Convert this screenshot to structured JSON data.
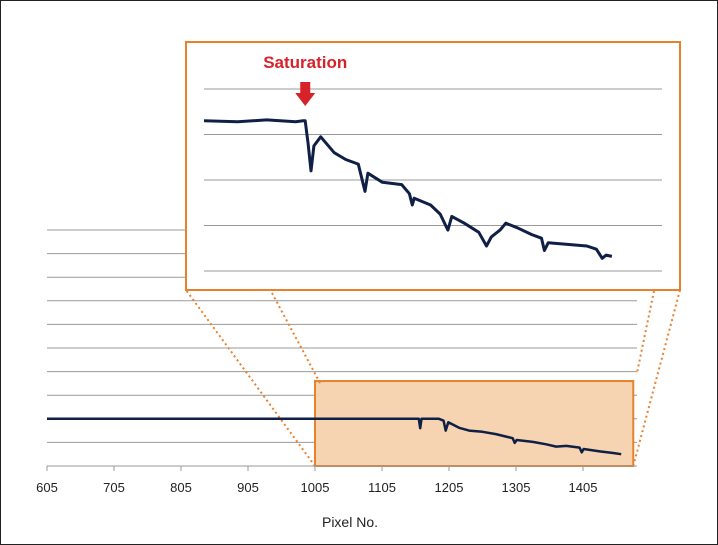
{
  "colors": {
    "line": "#0f1f45",
    "grid": "#9a9a9a",
    "zoom_border": "#e8812e",
    "zoom_fill": "#f6d4b2",
    "annotation": "#d6232a"
  },
  "chart_data": {
    "type": "line",
    "xlabel": "Pixel No.",
    "ylabel": "",
    "title": "",
    "xlim": [
      605,
      1480
    ],
    "ylim": [
      0,
      10
    ],
    "x_ticks": [
      "605",
      "705",
      "805",
      "905",
      "1005",
      "1105",
      "1205",
      "1305",
      "1405"
    ],
    "grid": true,
    "series": [
      {
        "points": [
          [
            605,
            2.0
          ],
          [
            1005,
            2.0
          ],
          [
            1160,
            2.0
          ],
          [
            1162,
            1.6
          ],
          [
            1164,
            2.0
          ],
          [
            1190,
            2.0
          ],
          [
            1197,
            1.92
          ],
          [
            1200,
            1.5
          ],
          [
            1204,
            1.85
          ],
          [
            1220,
            1.62
          ],
          [
            1235,
            1.5
          ],
          [
            1255,
            1.45
          ],
          [
            1275,
            1.35
          ],
          [
            1300,
            1.18
          ],
          [
            1303,
            0.98
          ],
          [
            1306,
            1.1
          ],
          [
            1330,
            1.02
          ],
          [
            1350,
            0.92
          ],
          [
            1365,
            0.82
          ],
          [
            1380,
            0.85
          ],
          [
            1400,
            0.78
          ],
          [
            1403,
            0.58
          ],
          [
            1406,
            0.72
          ],
          [
            1430,
            0.62
          ],
          [
            1450,
            0.55
          ],
          [
            1462,
            0.5
          ]
        ]
      }
    ],
    "zoom_region": {
      "x_range": [
        1005,
        1480
      ]
    },
    "inset": {
      "xlim": [
        1005,
        1480
      ],
      "annotation": {
        "text": "Saturation",
        "x": 1110
      },
      "series": [
        {
          "points": [
            [
              1005,
              3.3
            ],
            [
              1040,
              3.28
            ],
            [
              1070,
              3.32
            ],
            [
              1100,
              3.28
            ],
            [
              1108,
              3.3
            ],
            [
              1110,
              3.3
            ],
            [
              1113,
              2.8
            ],
            [
              1116,
              2.2
            ],
            [
              1119,
              2.75
            ],
            [
              1126,
              2.95
            ],
            [
              1140,
              2.6
            ],
            [
              1152,
              2.45
            ],
            [
              1165,
              2.35
            ],
            [
              1172,
              1.75
            ],
            [
              1175,
              2.15
            ],
            [
              1190,
              1.95
            ],
            [
              1210,
              1.9
            ],
            [
              1218,
              1.7
            ],
            [
              1221,
              1.45
            ],
            [
              1223,
              1.6
            ],
            [
              1240,
              1.45
            ],
            [
              1250,
              1.25
            ],
            [
              1258,
              0.9
            ],
            [
              1262,
              1.2
            ],
            [
              1275,
              1.05
            ],
            [
              1290,
              0.85
            ],
            [
              1298,
              0.55
            ],
            [
              1303,
              0.75
            ],
            [
              1312,
              0.9
            ],
            [
              1318,
              1.05
            ],
            [
              1330,
              0.95
            ],
            [
              1345,
              0.8
            ],
            [
              1355,
              0.72
            ],
            [
              1358,
              0.45
            ],
            [
              1362,
              0.62
            ],
            [
              1385,
              0.58
            ],
            [
              1402,
              0.55
            ],
            [
              1412,
              0.48
            ],
            [
              1418,
              0.28
            ],
            [
              1422,
              0.35
            ],
            [
              1428,
              0.32
            ]
          ]
        }
      ]
    }
  },
  "axis_title": "Pixel No."
}
